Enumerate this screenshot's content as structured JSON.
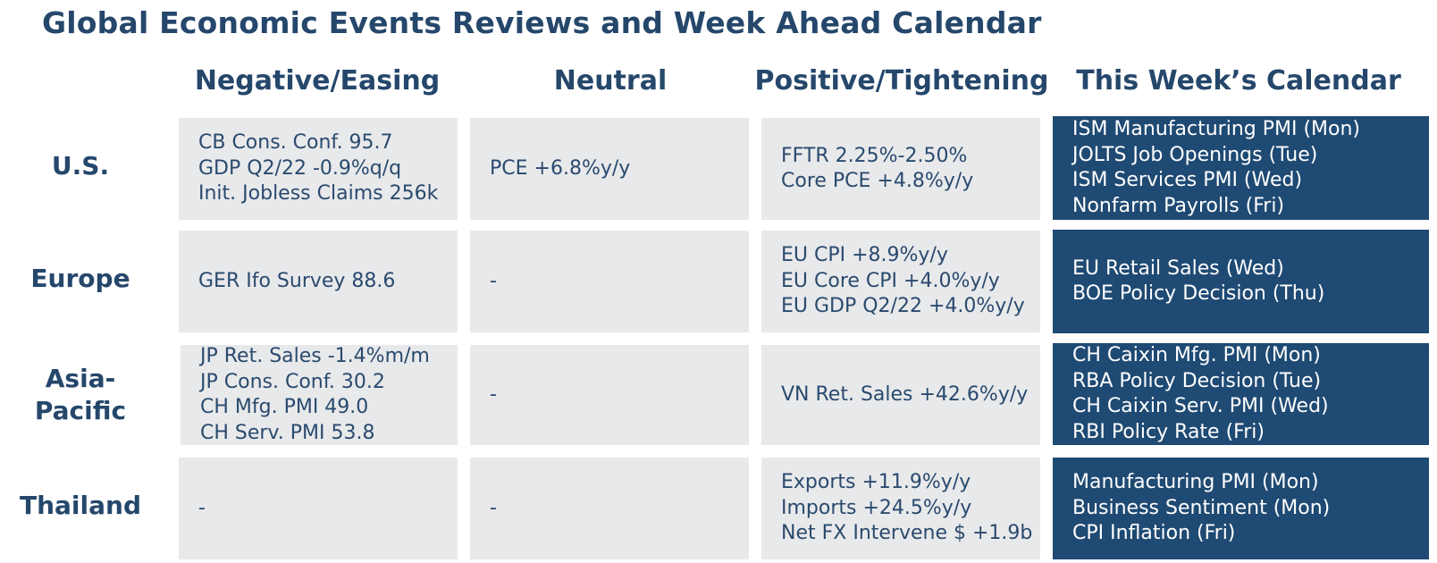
{
  "title": "Global Economic Events Reviews and Week Ahead Calendar",
  "headers": {
    "negative": "Negative/Easing",
    "neutral": "Neutral",
    "positive": "Positive/Tightening",
    "calendar": "This Week’s Calendar"
  },
  "rows": [
    {
      "label": "U.S.",
      "negative": [
        "CB Cons. Conf. 95.7",
        "GDP Q2/22 -0.9%q/q",
        "Init. Jobless Claims 256k"
      ],
      "neutral": [
        "PCE +6.8%y/y"
      ],
      "positive": [
        "FFTR 2.25%-2.50%",
        "Core PCE +4.8%y/y"
      ],
      "calendar": [
        "ISM Manufacturing PMI (Mon)",
        "JOLTS Job Openings (Tue)",
        "ISM Services PMI (Wed)",
        "Nonfarm Payrolls (Fri)"
      ]
    },
    {
      "label": "Europe",
      "negative": [
        "GER Ifo Survey 88.6"
      ],
      "neutral": [
        "-"
      ],
      "positive": [
        "EU CPI +8.9%y/y",
        "EU Core CPI +4.0%y/y",
        "EU GDP Q2/22 +4.0%y/y"
      ],
      "calendar": [
        "EU Retail Sales (Wed)",
        "BOE Policy Decision (Thu)"
      ]
    },
    {
      "label_lines": [
        "Asia-",
        "Pacific"
      ],
      "negative": [
        "JP Ret. Sales -1.4%m/m",
        "JP Cons. Conf. 30.2",
        "CH Mfg. PMI 49.0",
        "CH Serv. PMI 53.8"
      ],
      "neutral": [
        "-"
      ],
      "positive": [
        "VN Ret. Sales +42.6%y/y"
      ],
      "calendar": [
        "CH Caixin Mfg. PMI (Mon)",
        "RBA Policy Decision (Tue)",
        "CH Caixin Serv. PMI (Wed)",
        "RBI Policy Rate (Fri)"
      ]
    },
    {
      "label": "Thailand",
      "negative": [
        "-"
      ],
      "neutral": [
        "-"
      ],
      "positive": [
        "Exports +11.9%y/y",
        "Imports +24.5%y/y",
        "Net FX Intervene $ +1.9b"
      ],
      "calendar": [
        "Manufacturing PMI (Mon)",
        "Business Sentiment (Mon)",
        "CPI Inflation (Fri)"
      ]
    }
  ],
  "colors": {
    "title": "#25476b",
    "cell_bg": "#e8e9eb",
    "calendar_bg": "#1f4a73",
    "calendar_text": "#ffffff"
  }
}
